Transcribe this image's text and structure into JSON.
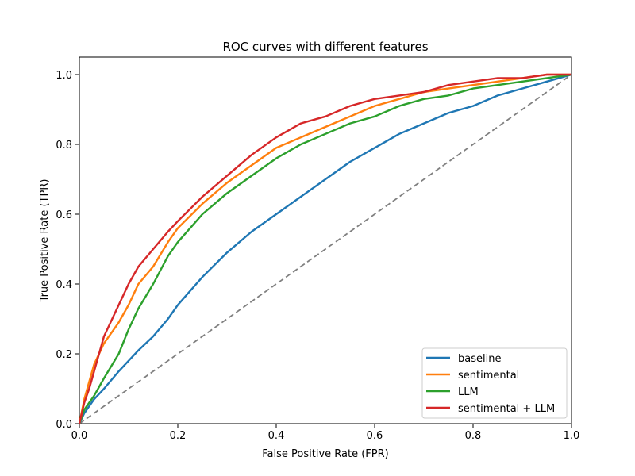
{
  "chart_data": {
    "type": "line",
    "title": "ROC curves with different features",
    "xlabel": "False Positive Rate (FPR)",
    "ylabel": "True Positive Rate (TPR)",
    "xlim": [
      0.0,
      1.0
    ],
    "ylim": [
      0.0,
      1.05
    ],
    "xticks": [
      "0.0",
      "0.2",
      "0.4",
      "0.6",
      "0.8",
      "1.0"
    ],
    "yticks": [
      "0.0",
      "0.2",
      "0.4",
      "0.6",
      "0.8",
      "1.0"
    ],
    "grid": false,
    "legend_position": "lower-right",
    "reference_line": {
      "name": "chance",
      "x": [
        0,
        1
      ],
      "y": [
        0,
        1
      ],
      "color": "#808080"
    },
    "series": [
      {
        "name": "baseline",
        "color": "#1f77b4",
        "x": [
          0,
          0.01,
          0.02,
          0.03,
          0.05,
          0.08,
          0.1,
          0.12,
          0.15,
          0.18,
          0.2,
          0.25,
          0.3,
          0.35,
          0.4,
          0.45,
          0.5,
          0.55,
          0.6,
          0.65,
          0.7,
          0.75,
          0.8,
          0.85,
          0.9,
          0.95,
          1.0
        ],
        "y": [
          0,
          0.03,
          0.05,
          0.07,
          0.1,
          0.15,
          0.18,
          0.21,
          0.25,
          0.3,
          0.34,
          0.42,
          0.49,
          0.55,
          0.6,
          0.65,
          0.7,
          0.75,
          0.79,
          0.83,
          0.86,
          0.89,
          0.91,
          0.94,
          0.96,
          0.98,
          1.0
        ]
      },
      {
        "name": "sentimental",
        "color": "#ff7f0e",
        "x": [
          0,
          0.01,
          0.02,
          0.03,
          0.05,
          0.08,
          0.1,
          0.12,
          0.15,
          0.18,
          0.2,
          0.25,
          0.3,
          0.35,
          0.4,
          0.45,
          0.5,
          0.55,
          0.6,
          0.65,
          0.7,
          0.75,
          0.8,
          0.85,
          0.9,
          0.95,
          1.0
        ],
        "y": [
          0,
          0.07,
          0.12,
          0.17,
          0.23,
          0.29,
          0.34,
          0.4,
          0.45,
          0.52,
          0.56,
          0.63,
          0.69,
          0.74,
          0.79,
          0.82,
          0.85,
          0.88,
          0.91,
          0.93,
          0.95,
          0.96,
          0.97,
          0.98,
          0.99,
          1.0,
          1.0
        ]
      },
      {
        "name": "LLM",
        "color": "#2ca02c",
        "x": [
          0,
          0.01,
          0.02,
          0.03,
          0.05,
          0.08,
          0.1,
          0.12,
          0.15,
          0.18,
          0.2,
          0.25,
          0.3,
          0.35,
          0.4,
          0.45,
          0.5,
          0.55,
          0.6,
          0.65,
          0.7,
          0.75,
          0.8,
          0.85,
          0.9,
          0.95,
          1.0
        ],
        "y": [
          0,
          0.04,
          0.06,
          0.08,
          0.13,
          0.2,
          0.27,
          0.33,
          0.4,
          0.48,
          0.52,
          0.6,
          0.66,
          0.71,
          0.76,
          0.8,
          0.83,
          0.86,
          0.88,
          0.91,
          0.93,
          0.94,
          0.96,
          0.97,
          0.98,
          0.99,
          1.0
        ]
      },
      {
        "name": "sentimental + LLM",
        "color": "#d62728",
        "x": [
          0,
          0.01,
          0.02,
          0.03,
          0.05,
          0.08,
          0.1,
          0.12,
          0.15,
          0.18,
          0.2,
          0.25,
          0.3,
          0.35,
          0.4,
          0.45,
          0.5,
          0.55,
          0.6,
          0.65,
          0.7,
          0.75,
          0.8,
          0.85,
          0.9,
          0.95,
          1.0
        ],
        "y": [
          0,
          0.06,
          0.1,
          0.15,
          0.25,
          0.34,
          0.4,
          0.45,
          0.5,
          0.55,
          0.58,
          0.65,
          0.71,
          0.77,
          0.82,
          0.86,
          0.88,
          0.91,
          0.93,
          0.94,
          0.95,
          0.97,
          0.98,
          0.99,
          0.99,
          1.0,
          1.0
        ]
      }
    ]
  }
}
